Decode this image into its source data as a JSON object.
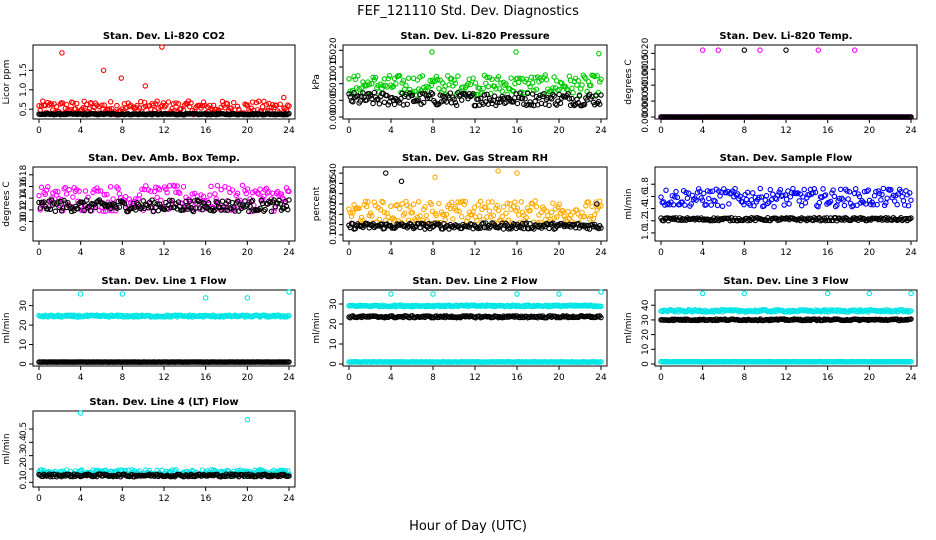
{
  "figure": {
    "title": "FEF_121110  Std. Dev. Diagnostics",
    "xlabel": "Hour of Day (UTC)"
  },
  "chart_data": [
    {
      "type": "scatter",
      "title": "Stan. Dev. Li-820 CO2",
      "ylabel": "Licor ppm",
      "xlim": [
        0,
        24
      ],
      "ylim": [
        0.3,
        2.1
      ],
      "xticks": [
        0,
        4,
        8,
        12,
        16,
        20,
        24
      ],
      "yticks": [
        0.5,
        1.0,
        1.5
      ],
      "ytick_labels": [
        "0.5",
        "1.0",
        "1.5"
      ],
      "series": [
        {
          "color": "#ff0000",
          "baseline": 0.5,
          "spread": 0.35,
          "outliers": [
            [
              2.2,
              1.95
            ],
            [
              11.8,
              2.1
            ],
            [
              7.9,
              1.3
            ],
            [
              10.2,
              1.1
            ],
            [
              6.2,
              1.5
            ],
            [
              23.5,
              0.8
            ]
          ]
        },
        {
          "color": "#000000",
          "baseline": 0.37,
          "spread": 0.03,
          "outliers": []
        }
      ]
    },
    {
      "type": "scatter",
      "title": "Stan. Dev. Li-820 Pressure",
      "ylabel": "kPa",
      "xlim": [
        0,
        24
      ],
      "ylim": [
        0,
        0.021
      ],
      "xticks": [
        0,
        4,
        8,
        12,
        16,
        20,
        24
      ],
      "yticks": [
        0.0,
        0.005,
        0.01,
        0.015,
        0.02
      ],
      "ytick_labels": [
        "0.000",
        "0.005",
        "0.010",
        "0.015",
        "0.020"
      ],
      "series": [
        {
          "color": "#00cc00",
          "baseline": 0.009,
          "spread": 0.006,
          "outliers": [
            [
              7.9,
              0.0195
            ],
            [
              15.9,
              0.0195
            ],
            [
              23.8,
              0.019
            ]
          ]
        },
        {
          "color": "#000000",
          "baseline": 0.005,
          "spread": 0.004,
          "outliers": []
        }
      ]
    },
    {
      "type": "scatter",
      "title": "Stan. Dev. Li-820 Temp.",
      "ylabel": "degrees C",
      "xlim": [
        0,
        24
      ],
      "ylim": [
        0,
        0.0022
      ],
      "xticks": [
        0,
        4,
        8,
        12,
        16,
        20,
        24
      ],
      "yticks": [
        0.0,
        0.0005,
        0.001,
        0.0015,
        0.002
      ],
      "ytick_labels": [
        "0.0000",
        "0.0005",
        "0.0010",
        "0.0015",
        "0.0020"
      ],
      "series": [
        {
          "color": "#ff00ff",
          "baseline": 0.0,
          "spread": 0.0,
          "outliers": [
            [
              4.0,
              0.0021
            ],
            [
              5.5,
              0.0021
            ],
            [
              9.5,
              0.0021
            ],
            [
              15.1,
              0.0021
            ],
            [
              18.6,
              0.0021
            ]
          ]
        },
        {
          "color": "#000000",
          "baseline": 0.0,
          "spread": 0.0,
          "outliers": [
            [
              8.0,
              0.0021
            ],
            [
              12.0,
              0.0021
            ]
          ]
        }
      ]
    },
    {
      "type": "scatter",
      "title": "Stan. Dev. Amb. Box Temp.",
      "ylabel": "degrees C",
      "xlim": [
        0,
        24
      ],
      "ylim": [
        0.07,
        0.19
      ],
      "xticks": [
        0,
        4,
        8,
        12,
        16,
        20,
        24
      ],
      "yticks": [
        0.1,
        0.12,
        0.14,
        0.16,
        0.18
      ],
      "ytick_labels": [
        "0.10",
        "0.12",
        "0.14",
        "0.16",
        "0.18"
      ],
      "series": [
        {
          "color": "#ff00ff",
          "baseline": 0.135,
          "spread": 0.045,
          "outliers": []
        },
        {
          "color": "#000000",
          "baseline": 0.125,
          "spread": 0.02,
          "outliers": []
        }
      ]
    },
    {
      "type": "scatter",
      "title": "Stan. Dev. Gas Stream RH",
      "ylabel": "percent",
      "xlim": [
        0,
        24
      ],
      "ylim": [
        0.08,
        0.42
      ],
      "xticks": [
        0,
        4,
        8,
        12,
        16,
        20,
        24
      ],
      "yticks": [
        0.1,
        0.15,
        0.2,
        0.25,
        0.3,
        0.35,
        0.4
      ],
      "ytick_labels": [
        "0.10",
        "0.15",
        "0.20",
        "0.25",
        "0.30",
        "0.35",
        "0.40"
      ],
      "series": [
        {
          "color": "#ffaa00",
          "baseline": 0.2,
          "spread": 0.11,
          "outliers": [
            [
              14.2,
              0.41
            ],
            [
              8.2,
              0.38
            ],
            [
              16.0,
              0.4
            ]
          ]
        },
        {
          "color": "#000000",
          "baseline": 0.14,
          "spread": 0.03,
          "outliers": [
            [
              3.5,
              0.4
            ],
            [
              5.0,
              0.36
            ],
            [
              23.6,
              0.25
            ]
          ]
        }
      ]
    },
    {
      "type": "scatter",
      "title": "Stan. Dev. Sample Flow",
      "ylabel": "ml/min",
      "xlim": [
        0,
        24
      ],
      "ylim": [
        0.9,
        2.05
      ],
      "xticks": [
        0,
        4,
        8,
        12,
        16,
        20,
        24
      ],
      "yticks": [
        1.0,
        1.2,
        1.4,
        1.6,
        1.8
      ],
      "ytick_labels": [
        "1.0",
        "1.2",
        "1.4",
        "1.6",
        "1.8"
      ],
      "series": [
        {
          "color": "#0000ff",
          "baseline": 1.55,
          "spread": 0.3,
          "outliers": []
        },
        {
          "color": "#000000",
          "baseline": 1.22,
          "spread": 0.05,
          "outliers": []
        }
      ]
    },
    {
      "type": "scatter",
      "title": "Stan. Dev. Line 1 Flow",
      "ylabel": "ml/min",
      "xlim": [
        0,
        24
      ],
      "ylim": [
        0,
        37
      ],
      "xticks": [
        0,
        4,
        8,
        12,
        16,
        20,
        24
      ],
      "yticks": [
        0,
        10,
        20,
        30
      ],
      "ytick_labels": [
        "0",
        "10",
        "20",
        "30"
      ],
      "series": [
        {
          "color": "#00e5e5",
          "baseline": 24.5,
          "spread": 1.0,
          "outliers": [
            [
              4.0,
              36
            ],
            [
              8.0,
              36
            ],
            [
              16.0,
              34
            ],
            [
              20.0,
              34
            ],
            [
              24.0,
              37
            ]
          ]
        },
        {
          "color": "#000000",
          "baseline": 1.0,
          "spread": 0.1,
          "outliers": []
        }
      ]
    },
    {
      "type": "scatter",
      "title": "Stan. Dev. Line 2 Flow",
      "ylabel": "ml/min",
      "xlim": [
        0,
        24
      ],
      "ylim": [
        0,
        36
      ],
      "xticks": [
        0,
        4,
        8,
        12,
        16,
        20,
        24
      ],
      "yticks": [
        0,
        10,
        20,
        30
      ],
      "ytick_labels": [
        "0",
        "10",
        "20",
        "30"
      ],
      "series": [
        {
          "color": "#00e5e5",
          "baseline": 29.0,
          "spread": 0.8,
          "outliers": [
            [
              4.0,
              35
            ],
            [
              8.0,
              35
            ],
            [
              16.0,
              35
            ],
            [
              20.0,
              35
            ],
            [
              24.0,
              36
            ]
          ]
        },
        {
          "color": "#00e5e5",
          "baseline": 1.0,
          "spread": 0.2,
          "outliers": []
        },
        {
          "color": "#000000",
          "baseline": 23.5,
          "spread": 1.0,
          "outliers": []
        }
      ]
    },
    {
      "type": "scatter",
      "title": "Stan. Dev. Line 3 Flow",
      "ylabel": "ml/min",
      "xlim": [
        0,
        24
      ],
      "ylim": [
        0,
        49
      ],
      "xticks": [
        0,
        4,
        8,
        12,
        16,
        20,
        24
      ],
      "yticks": [
        0,
        10,
        20,
        30,
        40
      ],
      "ytick_labels": [
        "0",
        "10",
        "20",
        "30",
        "40"
      ],
      "series": [
        {
          "color": "#00e5e5",
          "baseline": 36.0,
          "spread": 1.5,
          "outliers": [
            [
              4.0,
              48
            ],
            [
              8.0,
              48
            ],
            [
              16.0,
              48
            ],
            [
              20.0,
              48
            ],
            [
              24.0,
              48
            ]
          ]
        },
        {
          "color": "#00e5e5",
          "baseline": 1.5,
          "spread": 0.3,
          "outliers": []
        },
        {
          "color": "#000000",
          "baseline": 30.0,
          "spread": 1.0,
          "outliers": []
        }
      ]
    },
    {
      "type": "scatter",
      "title": "Stan. Dev. Line 4 (LT) Flow",
      "ylabel": "ml/min",
      "xlim": [
        0,
        24
      ],
      "ylim": [
        0.08,
        0.62
      ],
      "xticks": [
        0,
        4,
        8,
        12,
        16,
        20,
        24
      ],
      "yticks": [
        0.1,
        0.2,
        0.3,
        0.4,
        0.5
      ],
      "ytick_labels": [
        "0.1",
        "0.2",
        "0.3",
        "0.4",
        "0.5"
      ],
      "series": [
        {
          "color": "#00e5e5",
          "baseline": 0.17,
          "spread": 0.04,
          "outliers": [
            [
              4.0,
              0.62
            ],
            [
              20.0,
              0.57
            ]
          ]
        },
        {
          "color": "#000000",
          "baseline": 0.15,
          "spread": 0.02,
          "outliers": []
        }
      ]
    }
  ]
}
